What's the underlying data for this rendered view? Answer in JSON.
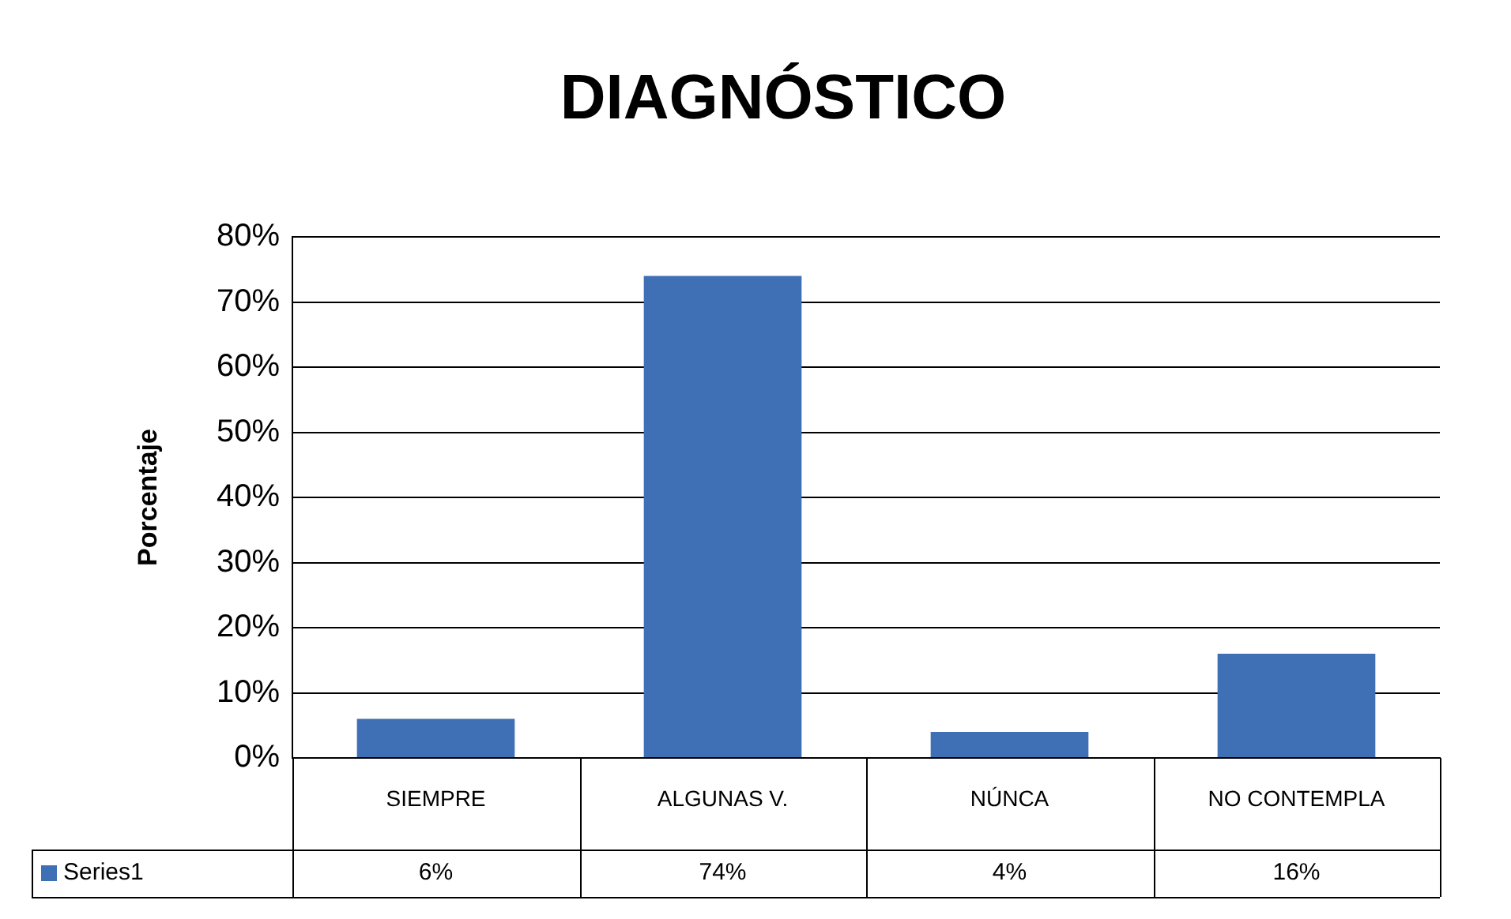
{
  "chart_data": {
    "type": "bar",
    "title": "DIAGNÓSTICO",
    "ylabel": "Porcentaje",
    "categories": [
      "SIEMPRE",
      "ALGUNAS V.",
      "NÚNCA",
      "NO CONTEMPLA"
    ],
    "series": [
      {
        "name": "Series1",
        "color": "#3f6fb5",
        "values": [
          6,
          74,
          4,
          16
        ],
        "value_labels": [
          "6%",
          "74%",
          "4%",
          "16%"
        ]
      }
    ],
    "ylim": [
      0,
      80
    ],
    "yticks": [
      {
        "value": 0,
        "label": "0%"
      },
      {
        "value": 10,
        "label": "10%"
      },
      {
        "value": 20,
        "label": "20%"
      },
      {
        "value": 30,
        "label": "30%"
      },
      {
        "value": 40,
        "label": "40%"
      },
      {
        "value": 50,
        "label": "50%"
      },
      {
        "value": 60,
        "label": "60%"
      },
      {
        "value": 70,
        "label": "70%"
      },
      {
        "value": 80,
        "label": "80%"
      }
    ],
    "grid": "y",
    "legend": "bottom"
  }
}
